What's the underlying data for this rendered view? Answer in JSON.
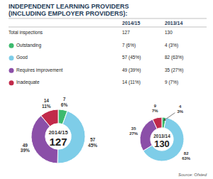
{
  "title": "INDEPENDENT LEARNING PROVIDERS",
  "subtitle": "(INCLUDING EMPLOYER PROVIDERS):",
  "table": {
    "headers": [
      "2014/15",
      "2013/14"
    ],
    "rows": [
      [
        "Total inspections",
        "127",
        "130"
      ],
      [
        "Outstanding",
        "7 (6%)",
        "4 (3%)"
      ],
      [
        "Good",
        "57 (45%)",
        "82 (63%)"
      ],
      [
        "Requires improvement",
        "49 (39%)",
        "35 (27%)"
      ],
      [
        "Inadequate",
        "14 (11%)",
        "9 (7%)"
      ]
    ]
  },
  "source": "Source: Ofsted",
  "chart_data": [
    {
      "type": "pie",
      "title": "2014/15",
      "total": 127,
      "values": [
        7,
        57,
        49,
        14
      ],
      "value_labels": [
        "7\n6%",
        "57\n45%",
        "49\n39%",
        "14\n11%"
      ],
      "colors": [
        "#3dba6e",
        "#7ecde8",
        "#8b4fa8",
        "#c1294a"
      ],
      "data_labels": true
    },
    {
      "type": "pie",
      "title": "2013/14",
      "total": 130,
      "values": [
        4,
        82,
        35,
        9
      ],
      "value_labels": [
        "4\n3%",
        "82\n63%",
        "35\n27%",
        "9\n7%"
      ],
      "colors": [
        "#3dba6e",
        "#7ecde8",
        "#8b4fa8",
        "#c1294a"
      ],
      "data_labels": true
    }
  ]
}
